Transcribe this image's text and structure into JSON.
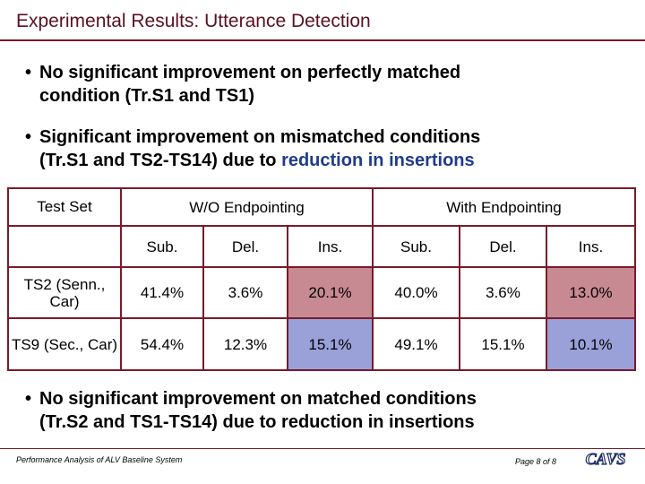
{
  "slide": {
    "title": "Experimental Results: Utterance Detection",
    "bullet1": {
      "dot": "•",
      "line1": "No significant improvement on perfectly matched",
      "line2": "condition (Tr.S1 and TS1)"
    },
    "bullet2": {
      "dot": "•",
      "line1": "Significant improvement on mismatched conditions",
      "line2_plain": "(Tr.S1 and TS2-TS14) due to ",
      "line2_highlight": "reduction in insertions"
    },
    "bullet3": {
      "dot": "•",
      "line1": "No significant improvement on matched conditions",
      "line2": "(Tr.S2 and TS1-TS14) due to reduction in insertions"
    }
  },
  "table": {
    "header": {
      "test_set": "Test Set",
      "wo_endpointing": "W/O Endpointing",
      "with_endpointing": "With Endpointing",
      "sub_cols": [
        "Sub.",
        "Del.",
        "Ins.",
        "Sub.",
        "Del.",
        "Ins."
      ]
    },
    "rows": [
      {
        "label": "TS2 (Senn., Car)",
        "values": [
          "41.4%",
          "3.6%",
          "20.1%",
          "40.0%",
          "3.6%",
          "13.0%"
        ]
      },
      {
        "label": "TS9 (Sec., Car)",
        "values": [
          "54.4%",
          "12.3%",
          "15.1%",
          "49.1%",
          "15.1%",
          "10.1%"
        ]
      }
    ],
    "colors": {
      "frame": "#7a1a2a",
      "row1_highlight": "#c88a92",
      "row2_highlight": "#9aa0d8"
    }
  },
  "footer": {
    "left": "Performance Analysis of ALV Baseline System",
    "page": "Page 8 of 8",
    "logo_text": "CAVS"
  }
}
